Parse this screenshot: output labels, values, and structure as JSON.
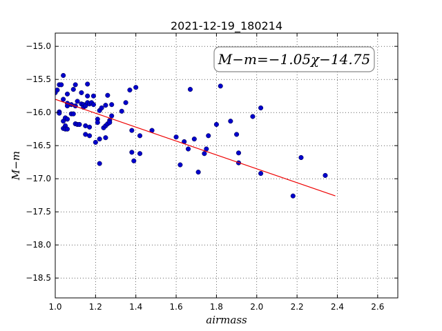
{
  "chart_data": {
    "type": "scatter",
    "title": "2021-12-19_180214",
    "xlabel": "airmass",
    "ylabel": "M−m",
    "xlim": [
      1.0,
      2.7
    ],
    "ylim": [
      -18.8,
      -14.8
    ],
    "y_inverted": true,
    "grid": true,
    "xticks": [
      "1.0",
      "1.2",
      "1.4",
      "1.6",
      "1.8",
      "2.0",
      "2.2",
      "2.4",
      "2.6"
    ],
    "yticks": [
      "−15.0",
      "−15.5",
      "−16.0",
      "−16.5",
      "−17.0",
      "−17.5",
      "−18.0",
      "−18.5"
    ],
    "annotation": "M−m=−1.05χ−14.75",
    "colors": {
      "points": "#0000cc",
      "fit": "#ee0000"
    },
    "fit": {
      "slope": -1.05,
      "intercept": -14.75,
      "x_range": [
        1.0,
        2.39
      ]
    },
    "points": [
      [
        1.0,
        -15.7
      ],
      [
        1.01,
        -15.66
      ],
      [
        1.02,
        -15.58
      ],
      [
        1.02,
        -15.99
      ],
      [
        1.02,
        -16.01
      ],
      [
        1.03,
        -15.58
      ],
      [
        1.04,
        -15.44
      ],
      [
        1.04,
        -15.8
      ],
      [
        1.04,
        -16.13
      ],
      [
        1.04,
        -16.24
      ],
      [
        1.05,
        -16.08
      ],
      [
        1.05,
        -16.2
      ],
      [
        1.05,
        -16.25
      ],
      [
        1.06,
        -15.72
      ],
      [
        1.06,
        -15.86
      ],
      [
        1.06,
        -15.9
      ],
      [
        1.06,
        -16.1
      ],
      [
        1.06,
        -16.25
      ],
      [
        1.08,
        -15.88
      ],
      [
        1.08,
        -16.02
      ],
      [
        1.09,
        -15.65
      ],
      [
        1.09,
        -16.02
      ],
      [
        1.1,
        -15.58
      ],
      [
        1.1,
        -15.9
      ],
      [
        1.1,
        -16.17
      ],
      [
        1.11,
        -15.83
      ],
      [
        1.11,
        -16.18
      ],
      [
        1.12,
        -16.18
      ],
      [
        1.13,
        -15.7
      ],
      [
        1.13,
        -15.87
      ],
      [
        1.14,
        -15.88
      ],
      [
        1.14,
        -15.92
      ],
      [
        1.15,
        -15.9
      ],
      [
        1.15,
        -16.2
      ],
      [
        1.15,
        -16.33
      ],
      [
        1.16,
        -15.57
      ],
      [
        1.16,
        -15.75
      ],
      [
        1.16,
        -15.85
      ],
      [
        1.17,
        -15.87
      ],
      [
        1.17,
        -16.22
      ],
      [
        1.17,
        -16.35
      ],
      [
        1.18,
        -15.85
      ],
      [
        1.19,
        -15.75
      ],
      [
        1.19,
        -15.88
      ],
      [
        1.2,
        -16.45
      ],
      [
        1.21,
        -16.1
      ],
      [
        1.21,
        -16.15
      ],
      [
        1.22,
        -16.4
      ],
      [
        1.22,
        -16.77
      ],
      [
        1.22,
        -15.97
      ],
      [
        1.23,
        -15.93
      ],
      [
        1.24,
        -16.23
      ],
      [
        1.25,
        -15.89
      ],
      [
        1.25,
        -16.2
      ],
      [
        1.25,
        -16.38
      ],
      [
        1.26,
        -15.74
      ],
      [
        1.26,
        -16.17
      ],
      [
        1.27,
        -16.12
      ],
      [
        1.27,
        -16.15
      ],
      [
        1.28,
        -15.88
      ],
      [
        1.28,
        -16.05
      ],
      [
        1.33,
        -15.98
      ],
      [
        1.35,
        -15.85
      ],
      [
        1.37,
        -15.66
      ],
      [
        1.38,
        -16.27
      ],
      [
        1.38,
        -16.6
      ],
      [
        1.39,
        -16.73
      ],
      [
        1.4,
        -15.62
      ],
      [
        1.42,
        -16.35
      ],
      [
        1.42,
        -16.62
      ],
      [
        1.48,
        -16.27
      ],
      [
        1.6,
        -16.37
      ],
      [
        1.62,
        -16.79
      ],
      [
        1.64,
        -16.44
      ],
      [
        1.66,
        -16.55
      ],
      [
        1.67,
        -15.65
      ],
      [
        1.69,
        -16.4
      ],
      [
        1.71,
        -16.9
      ],
      [
        1.74,
        -16.62
      ],
      [
        1.75,
        -16.55
      ],
      [
        1.76,
        -16.35
      ],
      [
        1.8,
        -16.18
      ],
      [
        1.82,
        -15.6
      ],
      [
        1.87,
        -16.13
      ],
      [
        1.9,
        -16.33
      ],
      [
        1.91,
        -16.61
      ],
      [
        1.91,
        -16.76
      ],
      [
        1.98,
        -16.06
      ],
      [
        2.02,
        -15.93
      ],
      [
        2.02,
        -16.92
      ],
      [
        2.18,
        -17.26
      ],
      [
        2.22,
        -16.68
      ],
      [
        2.34,
        -16.95
      ]
    ]
  }
}
